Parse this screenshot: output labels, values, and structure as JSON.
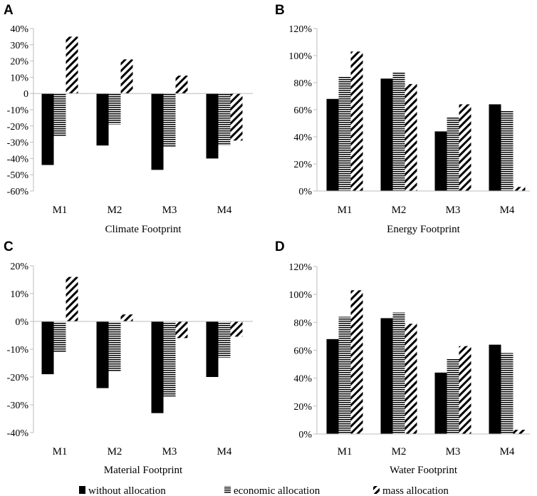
{
  "figure": {
    "legend": [
      {
        "key": "without",
        "label": "without allocation"
      },
      {
        "key": "economic",
        "label": "economic allocation"
      },
      {
        "key": "mass",
        "label": "mass allocation"
      }
    ]
  },
  "chart_data": [
    {
      "panel": "A",
      "type": "bar",
      "title": "Climate Footprint",
      "categories": [
        "M1",
        "M2",
        "M3",
        "M4"
      ],
      "ylim": [
        -60,
        40
      ],
      "yticks": [
        40,
        30,
        20,
        10,
        0,
        -10,
        -20,
        -30,
        -40,
        -50,
        -60
      ],
      "ytick_labels": [
        "40%",
        "30%",
        "20%",
        "10%",
        "0",
        "-10%",
        "-20%",
        "-30%",
        "-40%",
        "-50%",
        "-60%"
      ],
      "series": [
        {
          "name": "without allocation",
          "key": "without",
          "values": [
            -44,
            -32,
            -47,
            -40
          ]
        },
        {
          "name": "economic allocation",
          "key": "economic",
          "values": [
            -26,
            -19,
            -33,
            -32
          ]
        },
        {
          "name": "mass allocation",
          "key": "mass",
          "values": [
            35,
            21,
            11,
            -29
          ]
        }
      ]
    },
    {
      "panel": "B",
      "type": "bar",
      "title": "Energy Footprint",
      "categories": [
        "M1",
        "M2",
        "M3",
        "M4"
      ],
      "ylim": [
        0,
        120
      ],
      "yticks": [
        120,
        100,
        80,
        60,
        40,
        20,
        0
      ],
      "ytick_labels": [
        "120%",
        "100%",
        "80%",
        "60%",
        "40%",
        "20%",
        "0%"
      ],
      "series": [
        {
          "name": "without allocation",
          "key": "without",
          "values": [
            68,
            83,
            44,
            64
          ]
        },
        {
          "name": "economic allocation",
          "key": "economic",
          "values": [
            85,
            88,
            55,
            59
          ]
        },
        {
          "name": "mass allocation",
          "key": "mass",
          "values": [
            103,
            79,
            64,
            3
          ]
        }
      ]
    },
    {
      "panel": "C",
      "type": "bar",
      "title": "Material Footprint",
      "categories": [
        "M1",
        "M2",
        "M3",
        "M4"
      ],
      "ylim": [
        -40,
        20
      ],
      "yticks": [
        20,
        10,
        0,
        -10,
        -20,
        -30,
        -40
      ],
      "ytick_labels": [
        "20%",
        "10%",
        "0%",
        "-10%",
        "-20%",
        "-30%",
        "-40%"
      ],
      "series": [
        {
          "name": "without allocation",
          "key": "without",
          "values": [
            -19,
            -24,
            -33,
            -20
          ]
        },
        {
          "name": "economic allocation",
          "key": "economic",
          "values": [
            -11,
            -18,
            -27,
            -13
          ]
        },
        {
          "name": "mass allocation",
          "key": "mass",
          "values": [
            16,
            2.5,
            -6,
            -5.5
          ]
        }
      ]
    },
    {
      "panel": "D",
      "type": "bar",
      "title": "Water Footprint",
      "categories": [
        "M1",
        "M2",
        "M3",
        "M4"
      ],
      "ylim": [
        0,
        120
      ],
      "yticks": [
        120,
        100,
        80,
        60,
        40,
        20,
        0
      ],
      "ytick_labels": [
        "120%",
        "100%",
        "80%",
        "60%",
        "40%",
        "20%",
        "0%"
      ],
      "series": [
        {
          "name": "without allocation",
          "key": "without",
          "values": [
            68,
            83,
            44,
            64
          ]
        },
        {
          "name": "economic allocation",
          "key": "economic",
          "values": [
            84,
            87,
            54,
            58
          ]
        },
        {
          "name": "mass allocation",
          "key": "mass",
          "values": [
            103,
            79,
            63,
            3
          ]
        }
      ]
    }
  ]
}
